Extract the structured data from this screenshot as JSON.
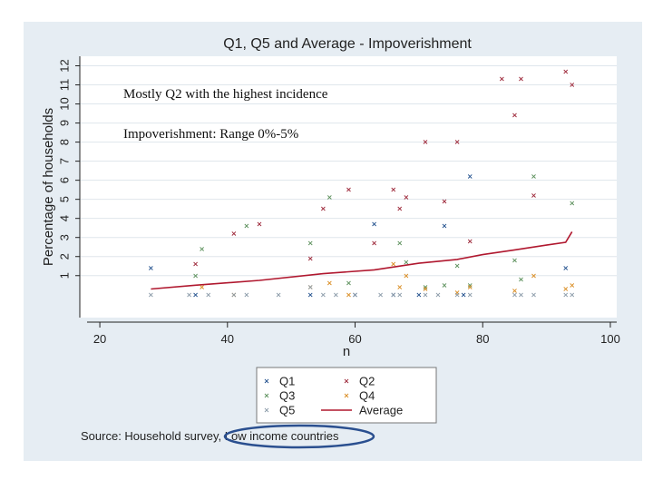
{
  "chart_data": {
    "type": "scatter",
    "title": "Q1, Q5 and Average - Impoverishment",
    "xlabel": "n",
    "ylabel": "Percentage of households",
    "xlim": [
      18,
      101
    ],
    "ylim": [
      -1.2,
      12.5
    ],
    "x_ticks": [
      20,
      40,
      60,
      80,
      100
    ],
    "y_ticks": [
      1,
      2,
      3,
      4,
      5,
      6,
      7,
      8,
      9,
      10,
      11,
      12
    ],
    "annotations": [
      "Mostly Q2 with the highest incidence",
      "Impoverishment: Range 0%-5%"
    ],
    "source_prefix": "Source: Household survey, ",
    "source_highlight": "Low income countries",
    "colors": {
      "Q1": "#1f4e8c",
      "Q2": "#9b2335",
      "Q3": "#5a8f5a",
      "Q4": "#d98b1f",
      "Q5": "#8a9aa8",
      "Average": "#b0182f",
      "highlight": "#2a4f8f"
    },
    "series": [
      {
        "name": "Q1",
        "marker": "x",
        "points": [
          [
            28,
            1.4
          ],
          [
            63,
            3.7
          ],
          [
            74,
            3.6
          ],
          [
            78,
            6.2
          ],
          [
            93,
            1.4
          ],
          [
            35,
            0
          ],
          [
            53,
            0
          ],
          [
            60,
            0
          ],
          [
            66,
            0
          ],
          [
            70,
            0
          ],
          [
            77,
            0
          ]
        ]
      },
      {
        "name": "Q2",
        "marker": "x",
        "points": [
          [
            35,
            1.6
          ],
          [
            41,
            3.2
          ],
          [
            45,
            3.7
          ],
          [
            53,
            1.9
          ],
          [
            55,
            4.5
          ],
          [
            59,
            5.5
          ],
          [
            63,
            2.7
          ],
          [
            66,
            5.5
          ],
          [
            67,
            4.5
          ],
          [
            68,
            5.1
          ],
          [
            71,
            8
          ],
          [
            74,
            4.9
          ],
          [
            76,
            8
          ],
          [
            78,
            2.8
          ],
          [
            83,
            11.3
          ],
          [
            85,
            9.4
          ],
          [
            86,
            11.3
          ],
          [
            88,
            5.2
          ],
          [
            93,
            11.7
          ],
          [
            94,
            11
          ]
        ]
      },
      {
        "name": "Q3",
        "marker": "x",
        "points": [
          [
            35,
            1
          ],
          [
            36,
            2.4
          ],
          [
            43,
            3.6
          ],
          [
            53,
            2.7
          ],
          [
            56,
            5.1
          ],
          [
            59,
            0.6
          ],
          [
            67,
            2.7
          ],
          [
            68,
            1.7
          ],
          [
            71,
            0.4
          ],
          [
            74,
            0.5
          ],
          [
            76,
            1.5
          ],
          [
            78,
            0.5
          ],
          [
            85,
            1.8
          ],
          [
            86,
            0.8
          ],
          [
            88,
            6.2
          ],
          [
            94,
            4.8
          ]
        ]
      },
      {
        "name": "Q4",
        "marker": "x",
        "points": [
          [
            36,
            0.4
          ],
          [
            41,
            0
          ],
          [
            53,
            0.4
          ],
          [
            56,
            0.6
          ],
          [
            59,
            0
          ],
          [
            66,
            1.6
          ],
          [
            67,
            0.4
          ],
          [
            68,
            1
          ],
          [
            71,
            0.3
          ],
          [
            76,
            0.1
          ],
          [
            78,
            0.4
          ],
          [
            85,
            0.2
          ],
          [
            88,
            1
          ],
          [
            93,
            0.3
          ],
          [
            94,
            0.5
          ]
        ]
      },
      {
        "name": "Q5",
        "marker": "x",
        "points": [
          [
            28,
            0
          ],
          [
            34,
            0
          ],
          [
            37,
            0
          ],
          [
            41,
            0
          ],
          [
            43,
            0
          ],
          [
            48,
            0
          ],
          [
            53,
            0.4
          ],
          [
            55,
            0
          ],
          [
            57,
            0
          ],
          [
            60,
            0
          ],
          [
            64,
            0
          ],
          [
            66,
            0
          ],
          [
            67,
            0
          ],
          [
            71,
            0
          ],
          [
            73,
            0
          ],
          [
            76,
            0
          ],
          [
            78,
            0
          ],
          [
            85,
            0
          ],
          [
            86,
            0
          ],
          [
            88,
            0
          ],
          [
            93,
            0
          ],
          [
            94,
            0
          ]
        ]
      },
      {
        "name": "Average",
        "marker": "line",
        "points": [
          [
            28,
            0.3
          ],
          [
            35,
            0.5
          ],
          [
            45,
            0.75
          ],
          [
            55,
            1.1
          ],
          [
            63,
            1.3
          ],
          [
            70,
            1.65
          ],
          [
            76,
            1.85
          ],
          [
            80,
            2.1
          ],
          [
            85,
            2.35
          ],
          [
            90,
            2.6
          ],
          [
            93,
            2.75
          ],
          [
            94,
            3.3
          ]
        ]
      }
    ],
    "legend": [
      "Q1",
      "Q2",
      "Q3",
      "Q4",
      "Q5",
      "Average"
    ]
  }
}
